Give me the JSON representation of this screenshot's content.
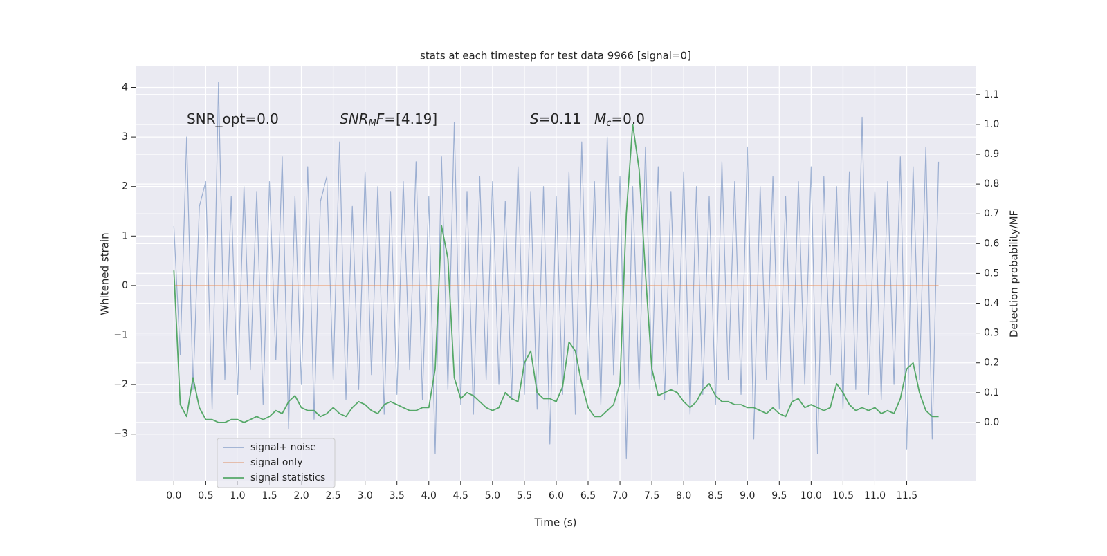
{
  "chart_data": {
    "type": "line",
    "title": "stats at each timestep for test data 9966 [signal=0]",
    "xlabel": "Time (s)",
    "ylabel": "Whitened strain",
    "y2label": "Detection probability/MF",
    "annotations": [
      [
        {
          "text": "SNR_opt=0.0"
        }
      ],
      [
        {
          "text": "SNR",
          "italic": true
        },
        {
          "text": "M",
          "italic": true,
          "sub": true
        },
        {
          "text": "F",
          "italic": true
        },
        {
          "text": "=[4.19]"
        }
      ],
      [
        {
          "text": "S",
          "italic": true
        },
        {
          "text": "=0.11"
        }
      ],
      [
        {
          "text": "M",
          "italic": true
        },
        {
          "text": "c",
          "italic": true,
          "sub": true
        },
        {
          "text": "=0.0"
        }
      ]
    ],
    "x": [
      0,
      0.1,
      0.2,
      0.3,
      0.4,
      0.5,
      0.6,
      0.7,
      0.8,
      0.9,
      1,
      1.1,
      1.2,
      1.3,
      1.4,
      1.5,
      1.6,
      1.7,
      1.8,
      1.9,
      2,
      2.1,
      2.2,
      2.3,
      2.4,
      2.5,
      2.6,
      2.7,
      2.8,
      2.9,
      3,
      3.1,
      3.2,
      3.3,
      3.4,
      3.5,
      3.6,
      3.7,
      3.8,
      3.9,
      4,
      4.1,
      4.2,
      4.3,
      4.4,
      4.5,
      4.6,
      4.7,
      4.8,
      4.9,
      5,
      5.1,
      5.2,
      5.3,
      5.4,
      5.5,
      5.6,
      5.7,
      5.8,
      5.9,
      6,
      6.1,
      6.2,
      6.3,
      6.4,
      6.5,
      6.6,
      6.7,
      6.8,
      6.9,
      7,
      7.1,
      7.2,
      7.3,
      7.4,
      7.5,
      7.6,
      7.7,
      7.8,
      7.9,
      8,
      8.1,
      8.2,
      8.3,
      8.4,
      8.5,
      8.6,
      8.7,
      8.8,
      8.9,
      9,
      9.1,
      9.2,
      9.3,
      9.4,
      9.5,
      9.6,
      9.7,
      9.8,
      9.9,
      10,
      10.1,
      10.2,
      10.3,
      10.4,
      10.5,
      10.6,
      10.7,
      10.8,
      10.9,
      11,
      11.1,
      11.2,
      11.3,
      11.4,
      11.5,
      11.6,
      11.7,
      11.8,
      11.9,
      12
    ],
    "series": [
      {
        "name": "signal+ noise",
        "color": "#4c72b0",
        "opacity": 0.5,
        "values": [
          1.2,
          -1.4,
          3.0,
          -2.1,
          1.6,
          2.1,
          -2.5,
          4.1,
          -1.9,
          1.8,
          -2.2,
          2.0,
          -1.7,
          1.9,
          -2.4,
          2.1,
          -1.5,
          2.6,
          -2.9,
          1.8,
          -2.0,
          2.4,
          -2.7,
          1.7,
          2.2,
          -1.9,
          2.9,
          -2.3,
          1.6,
          -2.1,
          2.3,
          -1.8,
          2.0,
          -2.6,
          1.9,
          -2.2,
          2.1,
          -1.7,
          2.5,
          -2.3,
          1.8,
          -3.4,
          2.6,
          -2.1,
          3.3,
          -2.4,
          1.9,
          -2.6,
          2.2,
          -1.9,
          2.1,
          -2.0,
          1.7,
          -2.3,
          2.4,
          -2.2,
          1.9,
          -2.5,
          2.0,
          -3.2,
          1.8,
          -2.2,
          2.3,
          -2.6,
          2.9,
          -1.9,
          2.1,
          -2.4,
          3.0,
          -1.8,
          2.2,
          -3.5,
          2.0,
          -2.1,
          2.8,
          -1.9,
          2.4,
          -2.3,
          1.9,
          -2.0,
          2.3,
          -2.6,
          2.0,
          -2.2,
          1.8,
          -2.4,
          2.5,
          -1.9,
          2.1,
          -2.2,
          2.8,
          -3.1,
          2.0,
          -1.9,
          2.2,
          -2.5,
          1.8,
          -2.3,
          2.1,
          -2.0,
          2.4,
          -3.4,
          2.2,
          -1.8,
          2.0,
          -2.5,
          2.3,
          -2.1,
          3.4,
          -2.2,
          1.9,
          -2.3,
          2.1,
          -2.0,
          2.6,
          -3.3,
          2.4,
          -1.9,
          2.8,
          -3.1,
          2.5
        ]
      },
      {
        "name": "signal only",
        "color": "#dd8452",
        "opacity": 0.5,
        "values": [
          0,
          0,
          0,
          0,
          0,
          0,
          0,
          0,
          0,
          0,
          0,
          0,
          0,
          0,
          0,
          0,
          0,
          0,
          0,
          0,
          0,
          0,
          0,
          0,
          0,
          0,
          0,
          0,
          0,
          0,
          0,
          0,
          0,
          0,
          0,
          0,
          0,
          0,
          0,
          0,
          0,
          0,
          0,
          0,
          0,
          0,
          0,
          0,
          0,
          0,
          0,
          0,
          0,
          0,
          0,
          0,
          0,
          0,
          0,
          0,
          0,
          0,
          0,
          0,
          0,
          0,
          0,
          0,
          0,
          0,
          0,
          0,
          0,
          0,
          0,
          0,
          0,
          0,
          0,
          0,
          0,
          0,
          0,
          0,
          0,
          0,
          0,
          0,
          0,
          0,
          0,
          0,
          0,
          0,
          0,
          0,
          0,
          0,
          0,
          0,
          0,
          0,
          0,
          0,
          0,
          0,
          0,
          0,
          0,
          0,
          0,
          0,
          0,
          0,
          0,
          0,
          0,
          0,
          0,
          0,
          0
        ]
      },
      {
        "name": "signal statistics",
        "color": "#55a868",
        "opacity": 1,
        "axis": "y2",
        "values": [
          0.51,
          0.06,
          0.02,
          0.15,
          0.05,
          0.01,
          0.01,
          0.0,
          0.0,
          0.01,
          0.01,
          0.0,
          0.01,
          0.02,
          0.01,
          0.02,
          0.04,
          0.03,
          0.07,
          0.09,
          0.05,
          0.04,
          0.04,
          0.02,
          0.03,
          0.05,
          0.03,
          0.02,
          0.05,
          0.07,
          0.06,
          0.04,
          0.03,
          0.06,
          0.07,
          0.06,
          0.05,
          0.04,
          0.04,
          0.05,
          0.05,
          0.18,
          0.66,
          0.55,
          0.15,
          0.08,
          0.1,
          0.09,
          0.07,
          0.05,
          0.04,
          0.05,
          0.1,
          0.08,
          0.07,
          0.2,
          0.24,
          0.1,
          0.08,
          0.08,
          0.07,
          0.12,
          0.27,
          0.24,
          0.13,
          0.05,
          0.02,
          0.02,
          0.04,
          0.06,
          0.13,
          0.7,
          1.0,
          0.85,
          0.5,
          0.18,
          0.09,
          0.1,
          0.11,
          0.1,
          0.07,
          0.05,
          0.07,
          0.11,
          0.13,
          0.09,
          0.07,
          0.07,
          0.06,
          0.06,
          0.05,
          0.05,
          0.04,
          0.03,
          0.05,
          0.03,
          0.02,
          0.07,
          0.08,
          0.05,
          0.06,
          0.05,
          0.04,
          0.05,
          0.13,
          0.1,
          0.06,
          0.04,
          0.05,
          0.04,
          0.05,
          0.03,
          0.04,
          0.03,
          0.08,
          0.18,
          0.2,
          0.1,
          0.04,
          0.02,
          0.02
        ]
      }
    ],
    "xlim": [
      -0.59,
      12.58
    ],
    "xticks": [
      {
        "value": 0,
        "label": "0.0"
      },
      0.5,
      {
        "value": 1,
        "label": "1.0"
      },
      1.5,
      {
        "value": 2,
        "label": "2.0"
      },
      2.5,
      {
        "value": 3,
        "label": "3.0"
      },
      3.5,
      {
        "value": 4,
        "label": "4.0"
      },
      4.5,
      {
        "value": 5,
        "label": "5.0"
      },
      5.5,
      {
        "value": 6,
        "label": "6.0"
      },
      6.5,
      {
        "value": 7,
        "label": "7.0"
      },
      7.5,
      {
        "value": 8,
        "label": "8.0"
      },
      8.5,
      {
        "value": 9,
        "label": "9.0"
      },
      9.5,
      {
        "value": 10,
        "label": "10.0"
      },
      10.5,
      {
        "value": 11,
        "label": "11.0"
      },
      11.5
    ],
    "ylim": [
      -3.94,
      4.44
    ],
    "yticks": [
      {
        "value": -3,
        "label": "−3"
      },
      {
        "value": -2,
        "label": "−2"
      },
      {
        "value": -1,
        "label": "−1"
      },
      0,
      1,
      2,
      3,
      4
    ],
    "y2lim": [
      -0.195,
      1.197
    ],
    "y2ticks": [
      {
        "value": 0,
        "label": "0.0"
      },
      0.1,
      0.2,
      0.3,
      0.4,
      0.5,
      0.6,
      0.7,
      0.8,
      0.9,
      {
        "value": 1,
        "label": "1.0"
      },
      1.1
    ],
    "grid": true,
    "legend": "lower left"
  }
}
